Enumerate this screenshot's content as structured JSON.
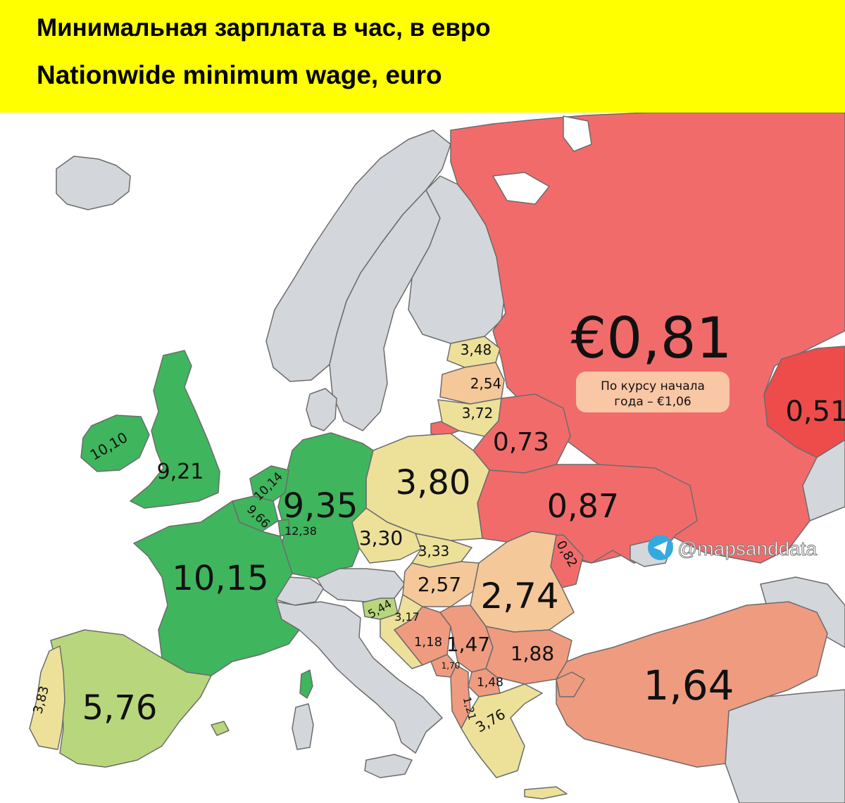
{
  "header": {
    "title_ru": "Минимальная зарплата в час, в евро",
    "title_en": "Nationwide minimum wage, euro",
    "background": "#ffff00"
  },
  "colors": {
    "sea": "#ffffff",
    "no_data": "#d3d7db",
    "border": "#6c6c6c",
    "dark_green": "#3fb55d",
    "light_green": "#b8d77c",
    "pale_yellow": "#ede19a",
    "light_orange": "#f5c89a",
    "salmon": "#ef9b80",
    "red": "#f26b6b",
    "dark_red": "#ee4b4b",
    "note_box": "#f9c6a6"
  },
  "russia": {
    "value": "€0,81",
    "note_line1": "По курсу начала",
    "note_line2": "года – €1,06"
  },
  "watermark": {
    "icon": "telegram-icon",
    "handle": "@mapsanddata"
  },
  "map_data": {
    "values": [
      {
        "country": "Russia",
        "label": "€0,81"
      },
      {
        "country": "Kazakhstan",
        "label": "0,51"
      },
      {
        "country": "Estonia",
        "label": "3,48"
      },
      {
        "country": "Latvia",
        "label": "2,54"
      },
      {
        "country": "Lithuania",
        "label": "3,72"
      },
      {
        "country": "Belarus",
        "label": "0,73"
      },
      {
        "country": "Ireland",
        "label": "10,10"
      },
      {
        "country": "United Kingdom",
        "label": "9,21"
      },
      {
        "country": "Netherlands",
        "label": "10,14"
      },
      {
        "country": "Belgium",
        "label": "9,66"
      },
      {
        "country": "Luxembourg",
        "label": "12,38"
      },
      {
        "country": "Germany",
        "label": "9,35"
      },
      {
        "country": "Poland",
        "label": "3,80"
      },
      {
        "country": "Ukraine",
        "label": "0,87"
      },
      {
        "country": "Czechia",
        "label": "3,30"
      },
      {
        "country": "Slovakia",
        "label": "3,33"
      },
      {
        "country": "Moldova",
        "label": "0,82"
      },
      {
        "country": "France",
        "label": "10,15"
      },
      {
        "country": "Hungary",
        "label": "2,57"
      },
      {
        "country": "Romania",
        "label": "2,74"
      },
      {
        "country": "Slovenia",
        "label": "5,44"
      },
      {
        "country": "Croatia",
        "label": "3,17"
      },
      {
        "country": "Bosnia and Herzegovina",
        "label": "1,18"
      },
      {
        "country": "Serbia",
        "label": "1,47"
      },
      {
        "country": "Montenegro",
        "label": "1,70"
      },
      {
        "country": "Bulgaria",
        "label": "1,88"
      },
      {
        "country": "North Macedonia",
        "label": "1,48"
      },
      {
        "country": "Albania",
        "label": "1,21"
      },
      {
        "country": "Greece",
        "label": "3,76"
      },
      {
        "country": "Turkey",
        "label": "1,64"
      },
      {
        "country": "Portugal",
        "label": "3,83"
      },
      {
        "country": "Spain",
        "label": "5,76"
      }
    ]
  }
}
